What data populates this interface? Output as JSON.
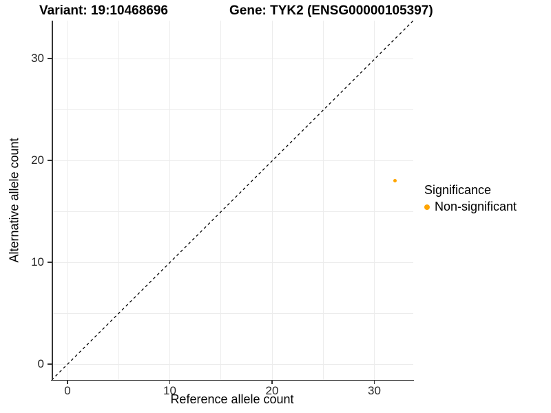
{
  "titles": {
    "variant": "Variant: 19:10468696",
    "gene": "Gene: TYK2 (ENSG00000105397)"
  },
  "axes": {
    "x": {
      "label": "Reference allele count",
      "tick_labels": [
        "0",
        "10",
        "20",
        "30"
      ],
      "tick_values": [
        0,
        10,
        20,
        30
      ],
      "minor_step": 5,
      "range": [
        -1.55,
        33.8
      ]
    },
    "y": {
      "label": "Alternative allele count",
      "tick_labels": [
        "0",
        "10",
        "20",
        "30"
      ],
      "tick_values": [
        0,
        10,
        20,
        30
      ],
      "minor_step": 5,
      "range": [
        -1.55,
        33.8
      ]
    }
  },
  "legend": {
    "title": "Significance",
    "items": [
      {
        "label": "Non-significant",
        "color": "#FFA500"
      }
    ]
  },
  "chart_data": {
    "type": "scatter",
    "title": "Variant: 19:10468696   Gene: TYK2 (ENSG00000105397)",
    "xlabel": "Reference allele count",
    "ylabel": "Alternative allele count",
    "xlim": [
      -1.55,
      33.8
    ],
    "ylim": [
      -1.55,
      33.8
    ],
    "grid": true,
    "legend_position": "right",
    "series": [
      {
        "name": "Non-significant",
        "color": "#FFA500",
        "points": [
          {
            "x": 32,
            "y": 18
          }
        ]
      }
    ],
    "reference_line": {
      "type": "identity",
      "style": "dashed",
      "color": "#000000",
      "from": [
        -1.55,
        -1.55
      ],
      "to": [
        33.8,
        33.8
      ]
    }
  },
  "style": {
    "accent_orange": "#FFA500",
    "gridline_color": "#ececec",
    "axis_line_color": "#333333",
    "tick_label_color": "#262626",
    "text_color": "#000000",
    "dashed_line_color": "#000000"
  }
}
